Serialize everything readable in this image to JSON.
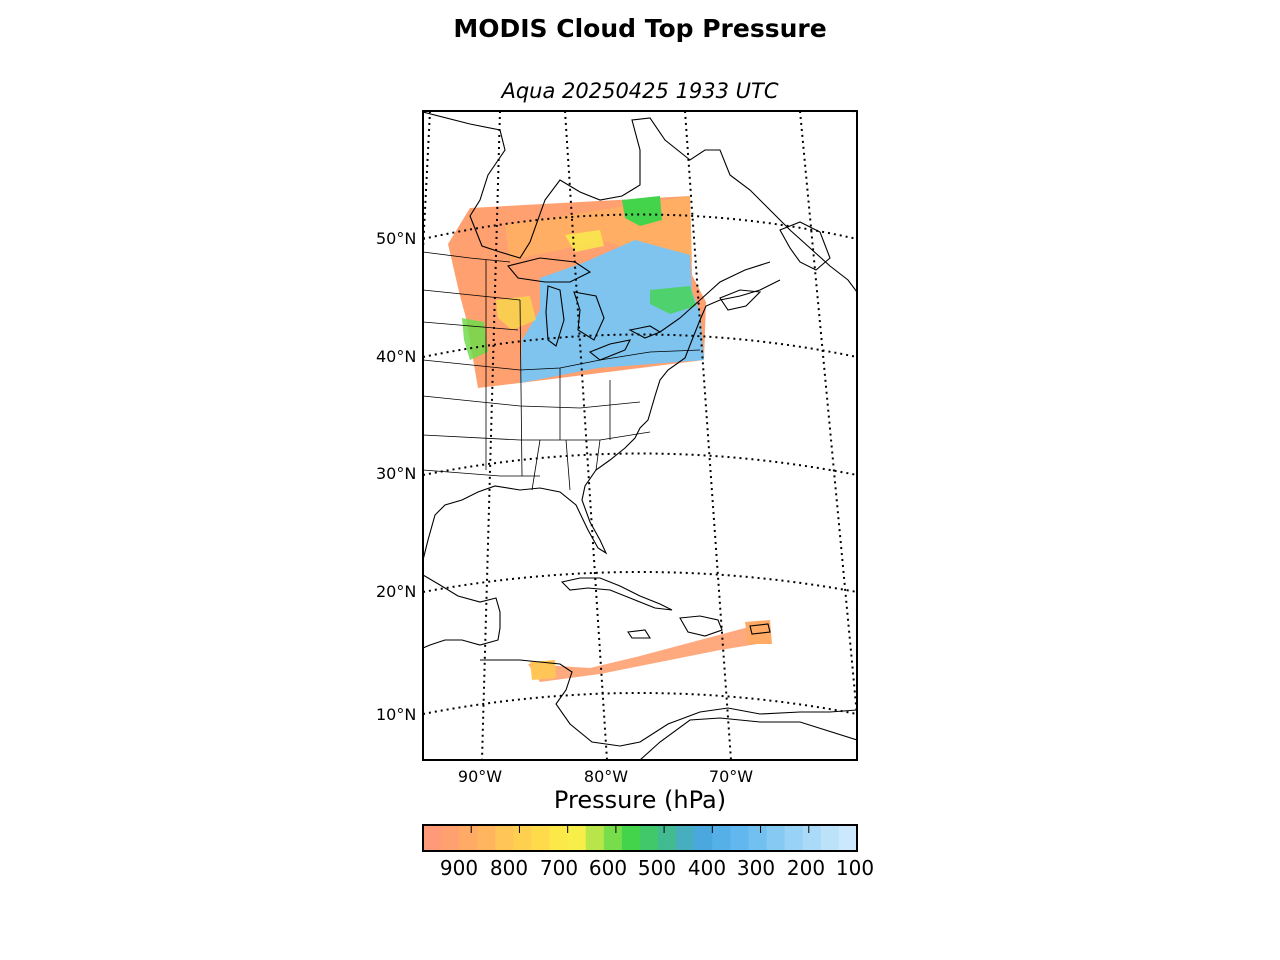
{
  "title": "MODIS Cloud Top Pressure",
  "subtitle": "Aqua 20250425 1933 UTC",
  "colorbar": {
    "label": "Pressure (hPa)",
    "ticks": [
      "900",
      "800",
      "700",
      "600",
      "500",
      "400",
      "300",
      "200",
      "100"
    ],
    "range_hpa": [
      1000,
      100
    ],
    "colors": [
      "#ff9a78",
      "#ffa070",
      "#ffab66",
      "#ffb55e",
      "#ffc556",
      "#ffd04f",
      "#ffdb4b",
      "#fde84a",
      "#f7ee4a",
      "#b8e64a",
      "#78dd4a",
      "#44d44c",
      "#40c86a",
      "#42ba92",
      "#46aebe",
      "#4aa8de",
      "#56b0e8",
      "#62b8ee",
      "#72c0f0",
      "#86caf4",
      "#98d2f6",
      "#aadaf8",
      "#bce2fa",
      "#cce8fc"
    ]
  },
  "map": {
    "lat_labels": [
      "50°N",
      "40°N",
      "30°N",
      "20°N",
      "10°N"
    ],
    "lon_labels": [
      "90°W",
      "80°W",
      "70°W"
    ]
  }
}
